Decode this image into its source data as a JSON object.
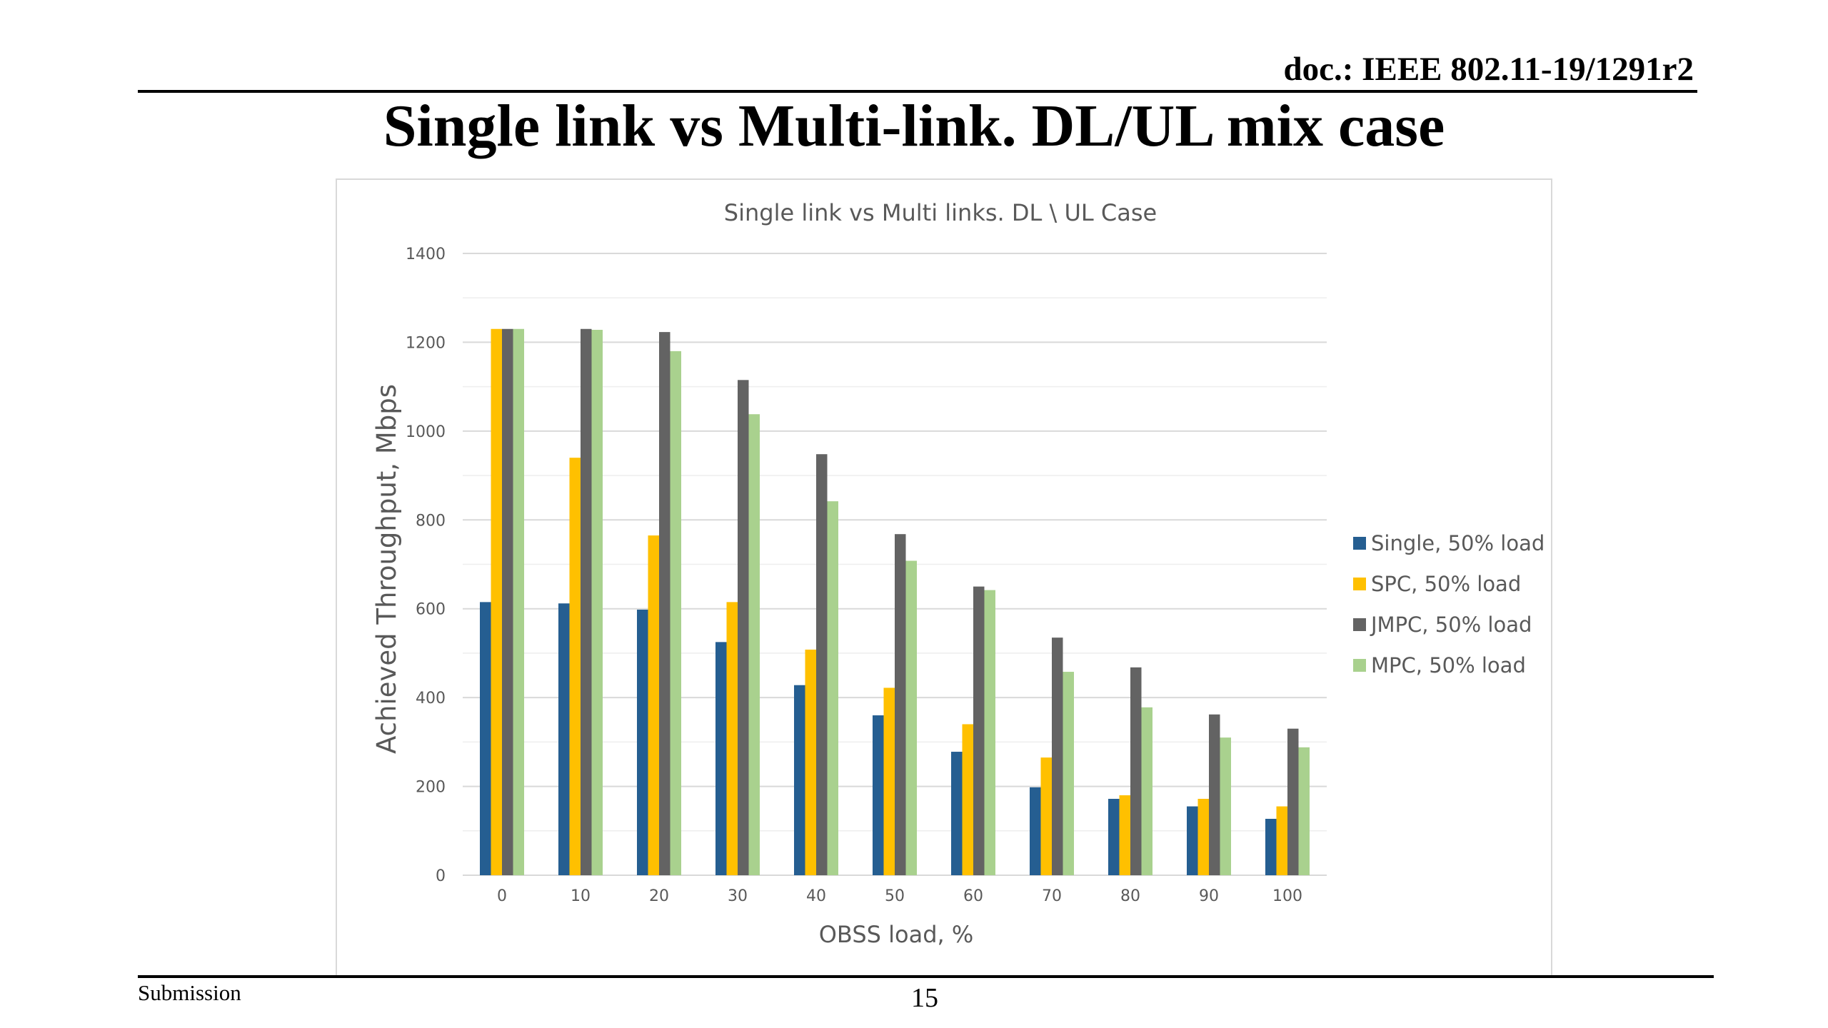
{
  "header": {
    "doc_id": "doc.: IEEE 802.11-19/1291r2",
    "slide_title": "Single link vs Multi-link. DL/UL mix case"
  },
  "footer": {
    "left": "Submission",
    "page_number": "15"
  },
  "chart_data": {
    "type": "bar",
    "title": "Single link vs Multi links. DL \\ UL Case",
    "xlabel": "OBSS load, %",
    "ylabel": "Achieved Throughput, Mbps",
    "ylim": [
      0,
      1400
    ],
    "yticks": [
      0,
      200,
      400,
      600,
      800,
      1000,
      1200,
      1400
    ],
    "categories": [
      "0",
      "10",
      "20",
      "30",
      "40",
      "50",
      "60",
      "70",
      "80",
      "90",
      "100"
    ],
    "grid": true,
    "legend_position": "right",
    "series": [
      {
        "name": "Single, 50% load",
        "color": "#255e91",
        "values": [
          615,
          612,
          598,
          525,
          428,
          360,
          278,
          198,
          172,
          155,
          127
        ]
      },
      {
        "name": "SPC, 50% load",
        "color": "#ffc000",
        "values": [
          1230,
          940,
          765,
          615,
          508,
          422,
          340,
          265,
          180,
          172,
          155
        ]
      },
      {
        "name": "JMPC, 50% load",
        "color": "#636363",
        "values": [
          1230,
          1230,
          1223,
          1115,
          948,
          768,
          650,
          535,
          468,
          362,
          330
        ]
      },
      {
        "name": "MPC, 50% load",
        "color": "#a9d18e",
        "values": [
          1230,
          1228,
          1180,
          1038,
          842,
          708,
          642,
          458,
          378,
          310,
          288
        ]
      }
    ]
  }
}
